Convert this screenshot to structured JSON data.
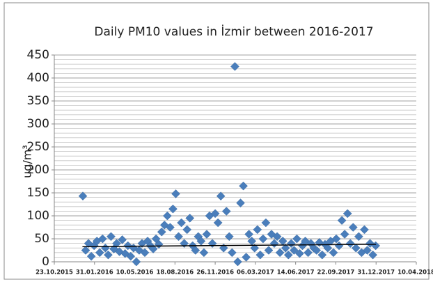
{
  "chart_data": {
    "type": "scatter",
    "title": "Daily PM10 values in İzmir between 2016-2017",
    "ylabel": "ug/m³",
    "marker": "diamond",
    "color": "#4a7ebb",
    "x": [
      "2016-01-02",
      "2016-01-09",
      "2016-01-16",
      "2016-01-23",
      "2016-01-30",
      "2016-02-06",
      "2016-02-13",
      "2016-02-20",
      "2016-02-27",
      "2016-03-05",
      "2016-03-12",
      "2016-03-19",
      "2016-03-26",
      "2016-04-02",
      "2016-04-09",
      "2016-04-16",
      "2016-04-23",
      "2016-04-30",
      "2016-05-07",
      "2016-05-14",
      "2016-05-21",
      "2016-05-28",
      "2016-06-04",
      "2016-06-11",
      "2016-06-18",
      "2016-06-25",
      "2016-07-02",
      "2016-07-09",
      "2016-07-16",
      "2016-07-23",
      "2016-07-30",
      "2016-08-06",
      "2016-08-13",
      "2016-08-20",
      "2016-08-27",
      "2016-09-03",
      "2016-09-10",
      "2016-09-17",
      "2016-09-24",
      "2016-10-01",
      "2016-10-08",
      "2016-10-15",
      "2016-10-22",
      "2016-10-29",
      "2016-11-05",
      "2016-11-12",
      "2016-11-19",
      "2016-11-26",
      "2016-12-03",
      "2016-12-10",
      "2016-12-17",
      "2016-12-24",
      "2016-12-31",
      "2017-01-07",
      "2017-01-14",
      "2017-01-21",
      "2017-01-28",
      "2017-02-04",
      "2017-02-11",
      "2017-02-18",
      "2017-02-25",
      "2017-03-04",
      "2017-03-11",
      "2017-03-18",
      "2017-03-25",
      "2017-04-01",
      "2017-04-08",
      "2017-04-15",
      "2017-04-22",
      "2017-04-29",
      "2017-05-06",
      "2017-05-13",
      "2017-05-20",
      "2017-05-27",
      "2017-06-03",
      "2017-06-10",
      "2017-06-17",
      "2017-06-24",
      "2017-07-01",
      "2017-07-08",
      "2017-07-15",
      "2017-07-22",
      "2017-07-29",
      "2017-08-05",
      "2017-08-12",
      "2017-08-19",
      "2017-08-26",
      "2017-09-02",
      "2017-09-09",
      "2017-09-16",
      "2017-09-23",
      "2017-09-30",
      "2017-10-07",
      "2017-10-14",
      "2017-10-21",
      "2017-10-28",
      "2017-11-04",
      "2017-11-11",
      "2017-11-18",
      "2017-11-25",
      "2017-12-02",
      "2017-12-09",
      "2017-12-16",
      "2017-12-23",
      "2017-12-30"
    ],
    "values": [
      143,
      25,
      40,
      12,
      35,
      45,
      20,
      50,
      30,
      15,
      55,
      28,
      40,
      22,
      48,
      18,
      35,
      12,
      30,
      0,
      25,
      40,
      20,
      45,
      35,
      28,
      50,
      38,
      65,
      80,
      100,
      75,
      115,
      148,
      55,
      85,
      40,
      70,
      95,
      35,
      25,
      55,
      45,
      20,
      60,
      100,
      40,
      105,
      85,
      143,
      30,
      110,
      55,
      20,
      425,
      0,
      128,
      165,
      10,
      60,
      45,
      30,
      70,
      15,
      50,
      85,
      25,
      60,
      40,
      55,
      20,
      45,
      30,
      15,
      40,
      25,
      50,
      18,
      35,
      45,
      20,
      40,
      30,
      25,
      42,
      15,
      38,
      30,
      45,
      20,
      50,
      35,
      90,
      60,
      105,
      40,
      75,
      30,
      55,
      20,
      70,
      25,
      40,
      15,
      35
    ],
    "trendline": {
      "x": [
        "2016-01-01",
        "2017-12-31"
      ],
      "values": [
        33,
        38
      ],
      "color": "#000000"
    },
    "xlim": [
      "2015-10-23",
      "2018-04-10"
    ],
    "xticks": [
      {
        "value": "2015-10-23",
        "label": "23.10.2015"
      },
      {
        "value": "2016-01-31",
        "label": "31.01.2016"
      },
      {
        "value": "2016-05-10",
        "label": "10.05.2016"
      },
      {
        "value": "2016-08-18",
        "label": "18.08.2016"
      },
      {
        "value": "2016-11-26",
        "label": "26.11.2016"
      },
      {
        "value": "2017-03-06",
        "label": "06.03.2017"
      },
      {
        "value": "2017-06-14",
        "label": "14.06.2017"
      },
      {
        "value": "2017-09-22",
        "label": "22.09.2017"
      },
      {
        "value": "2017-12-31",
        "label": "31.12.2017"
      },
      {
        "value": "2018-04-10",
        "label": "10.04.2018"
      }
    ],
    "ylim": [
      0,
      450
    ],
    "yticks": [
      0,
      50,
      100,
      150,
      200,
      250,
      300,
      350,
      400,
      450
    ],
    "minor_yticks": [
      10,
      20,
      30,
      40,
      60,
      70,
      80,
      90,
      110,
      120,
      130,
      140,
      160,
      170,
      180,
      190,
      210,
      220,
      230,
      240,
      260,
      270,
      280,
      290,
      310,
      320,
      330,
      340,
      360,
      370,
      380,
      390,
      410,
      420,
      430,
      440
    ],
    "grid": true
  }
}
